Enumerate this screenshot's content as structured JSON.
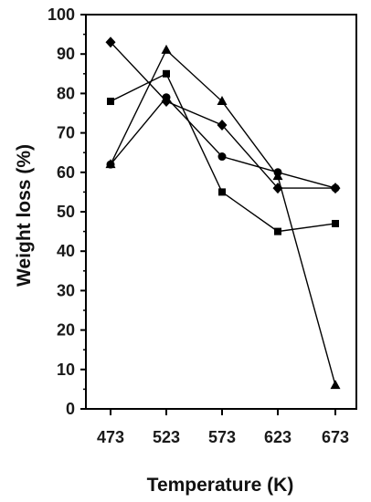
{
  "chart_data": {
    "type": "line",
    "xlabel": "Temperature (K)",
    "ylabel": "Weight loss (%)",
    "categories": [
      "473",
      "523",
      "573",
      "623",
      "673"
    ],
    "ylim": [
      0,
      100
    ],
    "yticks": [
      0,
      10,
      20,
      30,
      40,
      50,
      60,
      70,
      80,
      90,
      100
    ],
    "grid": false,
    "legend": "none",
    "series": [
      {
        "marker": "square",
        "values": [
          78,
          85,
          55,
          45,
          47
        ]
      },
      {
        "marker": "circle",
        "values": [
          62,
          79,
          64,
          60,
          56
        ]
      },
      {
        "marker": "triangle",
        "values": [
          62,
          91,
          78,
          59,
          6
        ]
      },
      {
        "marker": "diamond",
        "values": [
          93,
          78,
          72,
          56,
          56
        ]
      }
    ],
    "color": "#000000"
  }
}
